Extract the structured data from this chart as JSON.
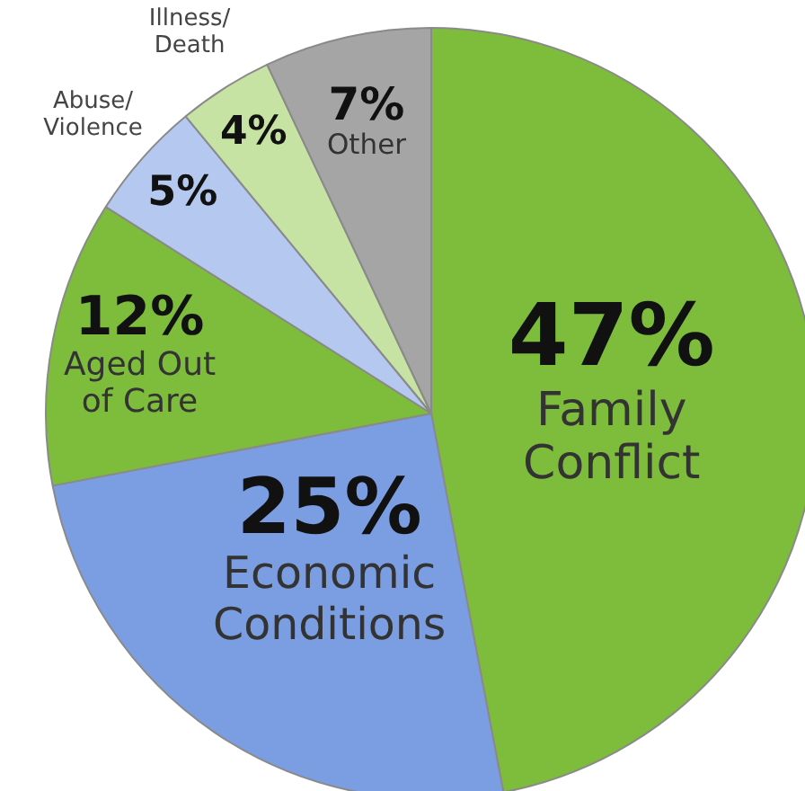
{
  "chart_data": {
    "type": "pie",
    "categories": [
      "Family Conflict",
      "Economic Conditions",
      "Aged Out of Care",
      "Abuse/Violence",
      "Illness/Death",
      "Other"
    ],
    "values": [
      47,
      25,
      12,
      5,
      4,
      7
    ],
    "colors": [
      "#7dbd3b",
      "#7b9ee2",
      "#7dbd3b",
      "#b4c8f0",
      "#c6e3a3",
      "#a5a5a5"
    ],
    "value_labels": [
      "47%",
      "25%",
      "12%",
      "5%",
      "4%",
      "7%"
    ],
    "legend": false
  }
}
